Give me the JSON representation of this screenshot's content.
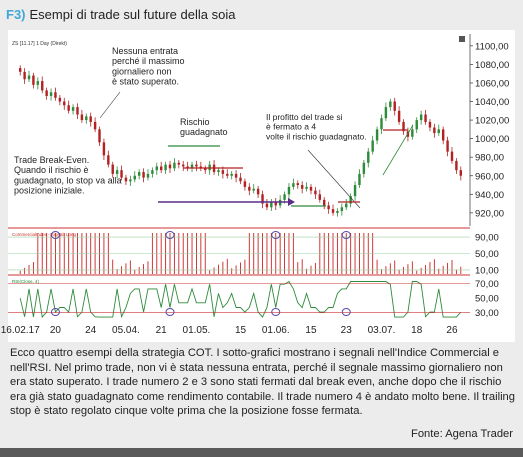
{
  "figure": {
    "number": "F3)",
    "title": "Esempi di trade sul future della soia",
    "caption": "Ecco quattro esempi della strategia COT. I sotto-grafici mostrano i segnali nell'Indice Commercial e nell'RSI. Nel primo trade, non vi è stata nessuna entrata, perché il segnale massimo giornaliero non era stato superato. I trade numero 2 e 3 sono stati fermati dal break even, anche dopo che il rischio era già stato guadagnato come rendimento contabile. Il trade numero 4 è andato molto bene. Il trailing stop è stato regolato cinque volte prima che la posizione fosse fermata.",
    "source": "Fonte: Agena Trader"
  },
  "chart_data": [
    {
      "type": "candlestick",
      "header": "ZS [11.17] 1 Day (Direkt)",
      "ylim": [
        908,
        1102
      ],
      "yticks": [
        920,
        940,
        960,
        980,
        1000,
        1020,
        1040,
        1060,
        1080,
        1100
      ],
      "ytick_labels": [
        "920,00",
        "940,00",
        "960,00",
        "980,00",
        "1000,00",
        "1020,00",
        "1040,00",
        "1060,00",
        "1080,00",
        "1100,00"
      ],
      "x_tick_labels": [
        "16.02.17",
        "20",
        "24",
        "05.04.",
        "21",
        "01.05.",
        "15",
        "01.06.",
        "15",
        "23",
        "03.07.",
        "18",
        "26"
      ],
      "x_tick_index": [
        0,
        8,
        16,
        24,
        32,
        40,
        50,
        58,
        66,
        74,
        82,
        90,
        98
      ],
      "closes": [
        1072,
        1064,
        1068,
        1058,
        1062,
        1052,
        1046,
        1050,
        1044,
        1040,
        1036,
        1030,
        1034,
        1026,
        1020,
        1024,
        1018,
        1010,
        996,
        982,
        972,
        962,
        966,
        958,
        954,
        956,
        960,
        964,
        958,
        962,
        966,
        970,
        966,
        972,
        968,
        974,
        972,
        970,
        968,
        972,
        970,
        968,
        966,
        972,
        964,
        966,
        962,
        960,
        962,
        958,
        954,
        948,
        944,
        946,
        940,
        930,
        926,
        932,
        928,
        934,
        940,
        948,
        952,
        950,
        946,
        948,
        944,
        940,
        934,
        928,
        924,
        920,
        922,
        926,
        930,
        938,
        950,
        962,
        974,
        986,
        998,
        1010,
        1022,
        1034,
        1040,
        1030,
        1018,
        1008,
        1002,
        1010,
        1020,
        1026,
        1018,
        1012,
        1006,
        1010,
        998,
        986,
        976,
        966,
        960
      ],
      "annotations": [
        "Nessuna entrata perché il massimo giornaliero non è stato superato.",
        "Trade Break-Even. Quando il rischio è guadagnato, lo stop va alla posizione iniziale.",
        "Rischio guadagnato",
        "Il profitto del trade si è fermato a 4 volte il rischio guadagnato."
      ]
    },
    {
      "type": "bar",
      "header": "CommercialIndex - Signal: Long",
      "ylim": [
        0,
        100
      ],
      "yticks": [
        10,
        50,
        90
      ],
      "ytick_labels": [
        "10,00",
        "50,00",
        "90,00"
      ],
      "bars_note": "Index rises to 100 in the marked signal zones"
    },
    {
      "type": "line",
      "header": "RSI(Close, 4)",
      "ylim": [
        20,
        75
      ],
      "yticks": [
        30,
        50,
        70
      ],
      "ytick_labels": [
        "30,00",
        "50,00",
        "70,00"
      ],
      "overbought": 70,
      "oversold": 30,
      "signal_circles_at_index": [
        8,
        34,
        58,
        74
      ]
    }
  ]
}
